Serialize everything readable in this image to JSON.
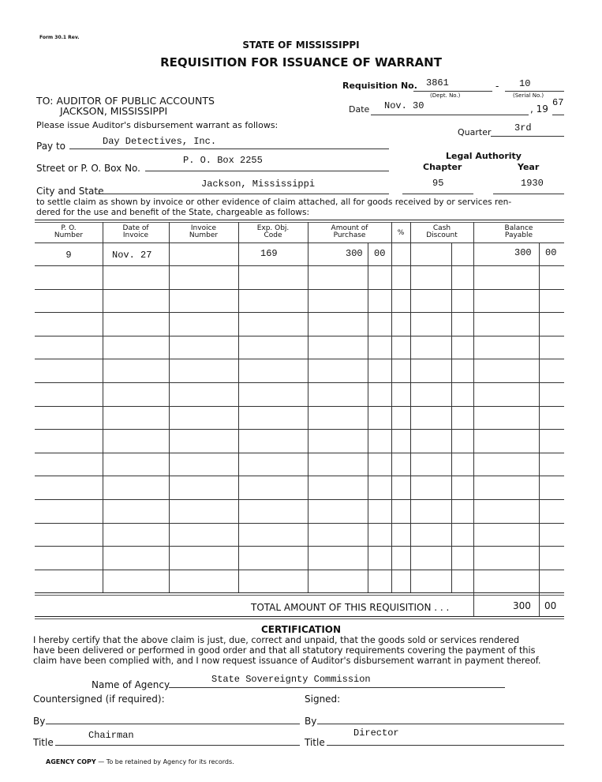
{
  "form_number": "Form 30.1 Rev.",
  "header": {
    "state": "STATE OF MISSISSIPPI",
    "title": "REQUISITION FOR ISSUANCE OF WARRANT"
  },
  "addressee": {
    "line1": "TO: AUDITOR OF PUBLIC ACCOUNTS",
    "line2": "JACKSON, MISSISSIPPI"
  },
  "requisition": {
    "label": "Requisition No.",
    "dept_no": "3861",
    "dept_label": "(Dept. No.)",
    "serial_no": "10",
    "serial_label": "(Serial No.)",
    "dash": "-"
  },
  "date": {
    "label": "Date",
    "value": "Nov. 30",
    "year_prefix": ", 19",
    "year": "67"
  },
  "instruction": "Please issue Auditor's disbursement warrant as follows:",
  "quarter": {
    "label": "Quarter",
    "value": "3rd"
  },
  "pay_to": {
    "label": "Pay to",
    "value": "Day Detectives, Inc."
  },
  "street": {
    "label": "Street or P. O. Box No.",
    "value": "P. O. Box 2255"
  },
  "city": {
    "label": "City and State",
    "value": "Jackson, Mississippi"
  },
  "legal_authority": {
    "label": "Legal Authority",
    "chapter_label": "Chapter",
    "year_label": "Year",
    "chapter": "95",
    "year": "1930"
  },
  "settle_text_1": "to settle claim as shown by invoice or other evidence of claim attached, all for goods received by or services ren-",
  "settle_text_2": "dered for the use and benefit of the State, chargeable as follows:",
  "table": {
    "headers": {
      "po": "P. O.\nNumber",
      "date": "Date of\nInvoice",
      "invoice": "Invoice\nNumber",
      "code": "Exp. Obj.\nCode",
      "amount": "Amount of\nPurchase",
      "pct": "%",
      "discount": "Cash\nDiscount",
      "balance": "Balance\nPayable"
    },
    "rows": [
      {
        "po": "9",
        "date": "Nov. 27",
        "invoice": "",
        "code": "169",
        "amount_dollars": "300",
        "amount_cents": "00",
        "pct": "",
        "discount": "",
        "balance_dollars": "300",
        "balance_cents": "00"
      }
    ],
    "total_label": "TOTAL AMOUNT OF THIS REQUISITION . . .",
    "total_dollars": "300",
    "total_cents": "00"
  },
  "certification": {
    "title": "CERTIFICATION",
    "line1": "I hereby certify that the above claim is just, due, correct and unpaid, that the goods sold or services rendered",
    "line2": "have been delivered or performed in good order and that all statutory requirements covering the payment of this",
    "line3": "claim have been complied with, and I now request issuance of Auditor's disbursement warrant in payment thereof."
  },
  "agency": {
    "label": "Name of Agency",
    "value": "State Sovereignty Commission"
  },
  "countersigned": {
    "label": "Countersigned (if required):",
    "by_label": "By",
    "title_label": "Title",
    "title_value": "Chairman"
  },
  "signed": {
    "label": "Signed:",
    "by_label": "By",
    "title_label": "Title",
    "title_value": "Director"
  },
  "footer": {
    "bold": "AGENCY COPY",
    "text": " — To be retained by Agency for its records."
  }
}
